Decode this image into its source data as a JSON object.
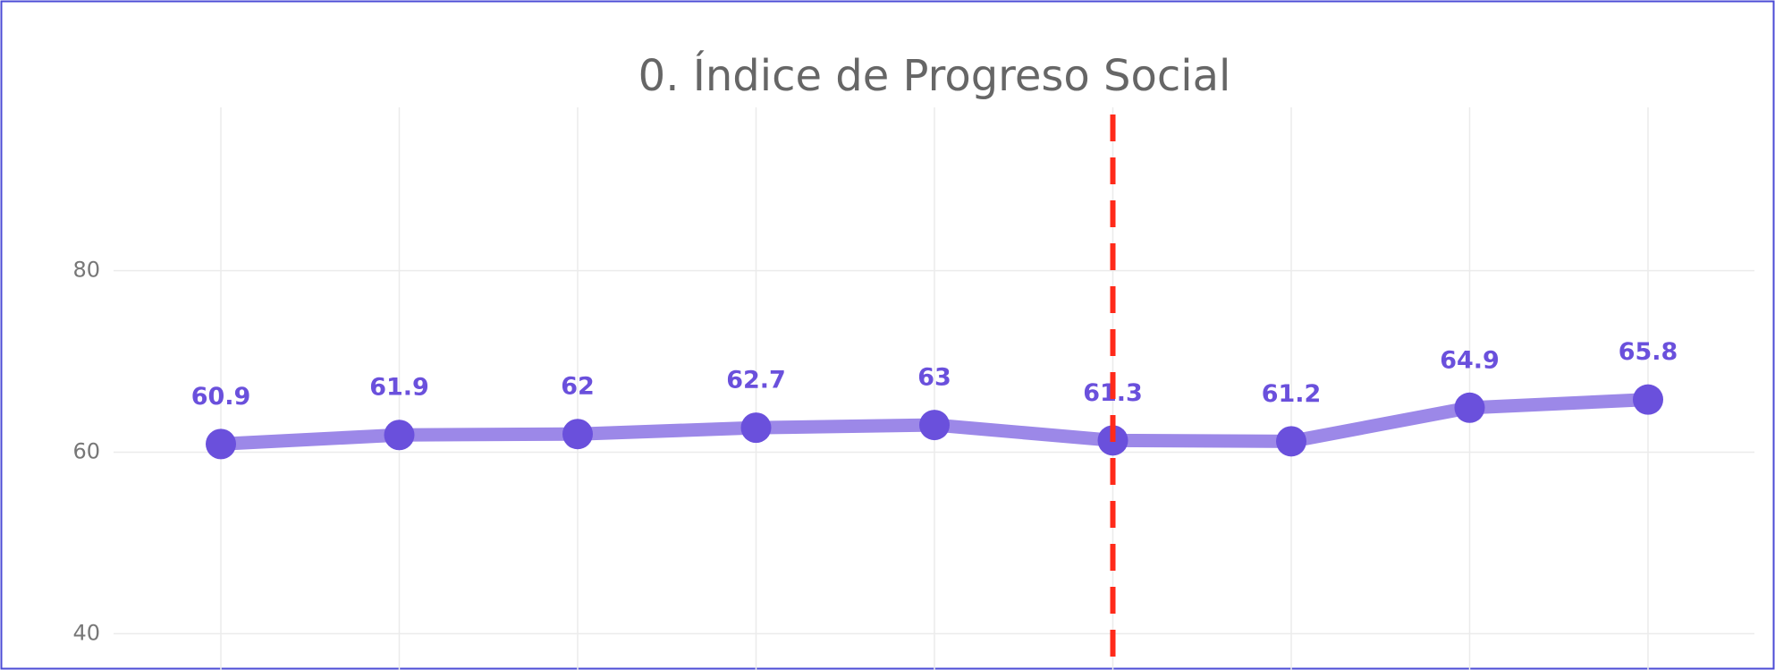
{
  "chart_data": {
    "type": "line",
    "title": "0. Índice de Progreso Social",
    "categories": [
      null,
      null,
      null,
      null,
      null,
      null,
      null,
      null,
      null
    ],
    "series": [
      {
        "name": null,
        "color": "#9c88e8",
        "marker_color": "#6a50dc",
        "values": [
          60.9,
          61.9,
          62,
          62.7,
          63,
          61.3,
          61.2,
          64.9,
          65.8
        ]
      }
    ],
    "ylim": [
      36,
      98
    ],
    "yticks": [
      40,
      60,
      80
    ],
    "grid": true,
    "reference_line": {
      "x_index": 5,
      "color": "#ff2a1a",
      "style": "dashed"
    }
  }
}
